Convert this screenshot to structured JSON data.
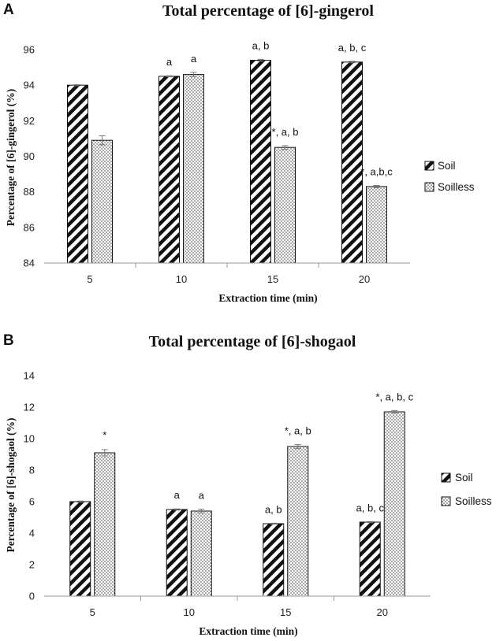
{
  "chart_data": [
    {
      "panel": "A",
      "type": "bar",
      "title": "Total percentage of [6]-gingerol",
      "xlabel": "Extraction time (min)",
      "ylabel": "Percentage of [6]-gingerol (%)",
      "ylim": [
        84,
        96
      ],
      "yticks": [
        84,
        86,
        88,
        90,
        92,
        94,
        96
      ],
      "categories": [
        "5",
        "10",
        "15",
        "20"
      ],
      "series": [
        {
          "name": "Soil",
          "pattern": "diagonal-stripes",
          "values": [
            94.0,
            94.5,
            95.4,
            95.3
          ],
          "errors": [
            0.03,
            0.03,
            0.05,
            0.04
          ],
          "annotations": [
            "",
            "a",
            "a, b",
            "a, b, c"
          ]
        },
        {
          "name": "Soilless",
          "pattern": "dots",
          "values": [
            90.9,
            94.6,
            90.5,
            88.3
          ],
          "errors": [
            0.25,
            0.12,
            0.1,
            0.06
          ],
          "annotations": [
            "",
            "a",
            "*, a, b",
            "*, a,b,c"
          ]
        }
      ],
      "legend_position": "right"
    },
    {
      "panel": "B",
      "type": "bar",
      "title": "Total percentage of [6]-shogaol",
      "xlabel": "Extraction time (min)",
      "ylabel": "Percentage of [6]-shogaol (%)",
      "ylim": [
        0,
        14
      ],
      "yticks": [
        0,
        2,
        4,
        6,
        8,
        10,
        12,
        14
      ],
      "categories": [
        "5",
        "10",
        "15",
        "20"
      ],
      "series": [
        {
          "name": "Soil",
          "pattern": "diagonal-stripes",
          "values": [
            6.0,
            5.5,
            4.6,
            4.7
          ],
          "errors": [
            0.04,
            0.04,
            0.03,
            0.03
          ],
          "annotations": [
            "",
            "a",
            "a, b",
            "a, b, c"
          ]
        },
        {
          "name": "Soilless",
          "pattern": "dots",
          "values": [
            9.1,
            5.4,
            9.5,
            11.7
          ],
          "errors": [
            0.2,
            0.12,
            0.12,
            0.08
          ],
          "annotations": [
            "*",
            "a",
            "*, a, b",
            "*, a, b, c"
          ]
        }
      ],
      "legend_position": "right"
    }
  ]
}
